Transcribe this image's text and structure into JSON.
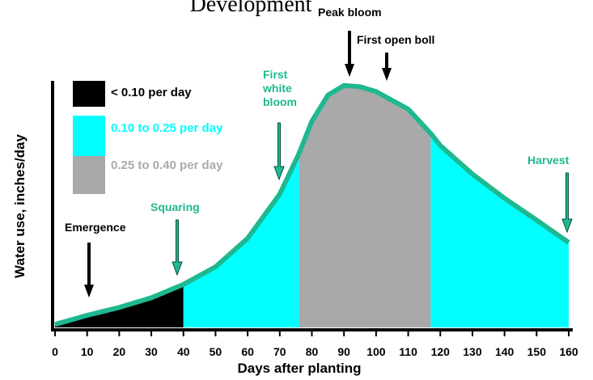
{
  "chart_data": {
    "type": "area",
    "title": "Development",
    "x_label": "Days after planting",
    "y_label": "Water use, inches/day",
    "x": [
      0,
      10,
      20,
      30,
      40,
      50,
      60,
      70,
      76,
      80,
      85,
      90,
      95,
      100,
      110,
      117,
      120,
      130,
      140,
      150,
      160
    ],
    "values": [
      0.005,
      0.02,
      0.033,
      0.049,
      0.071,
      0.1,
      0.147,
      0.22,
      0.287,
      0.34,
      0.383,
      0.399,
      0.397,
      0.389,
      0.36,
      0.32,
      0.3,
      0.253,
      0.213,
      0.177,
      0.14
    ],
    "line_color": "#1fb890",
    "xlim": [
      0,
      160
    ],
    "ylim": [
      0,
      0.4
    ],
    "xticks": [
      0,
      10,
      20,
      30,
      40,
      50,
      60,
      70,
      80,
      90,
      100,
      110,
      120,
      130,
      140,
      150,
      160
    ],
    "series": [
      {
        "name": "< 0.10 per day",
        "color": "#000000",
        "ranges": [
          [
            0,
            40
          ]
        ]
      },
      {
        "name": "0.10 to 0.25 per day",
        "color": "#00ffff",
        "ranges": [
          [
            40,
            76
          ],
          [
            117,
            160
          ]
        ]
      },
      {
        "name": "0.25 to 0.40 per day",
        "color": "#a9a9a9",
        "ranges": [
          [
            76,
            117
          ]
        ]
      }
    ],
    "annotations": [
      {
        "text": "Emergence",
        "color": "#000000"
      },
      {
        "text": "Squaring",
        "color": "#1fb890"
      },
      {
        "text": "First white bloom",
        "color": "#1fb890"
      },
      {
        "text": "Peak bloom",
        "color": "#000000"
      },
      {
        "text": "First open boll",
        "color": "#000000"
      },
      {
        "text": "Harvest",
        "color": "#1fb890"
      }
    ]
  }
}
